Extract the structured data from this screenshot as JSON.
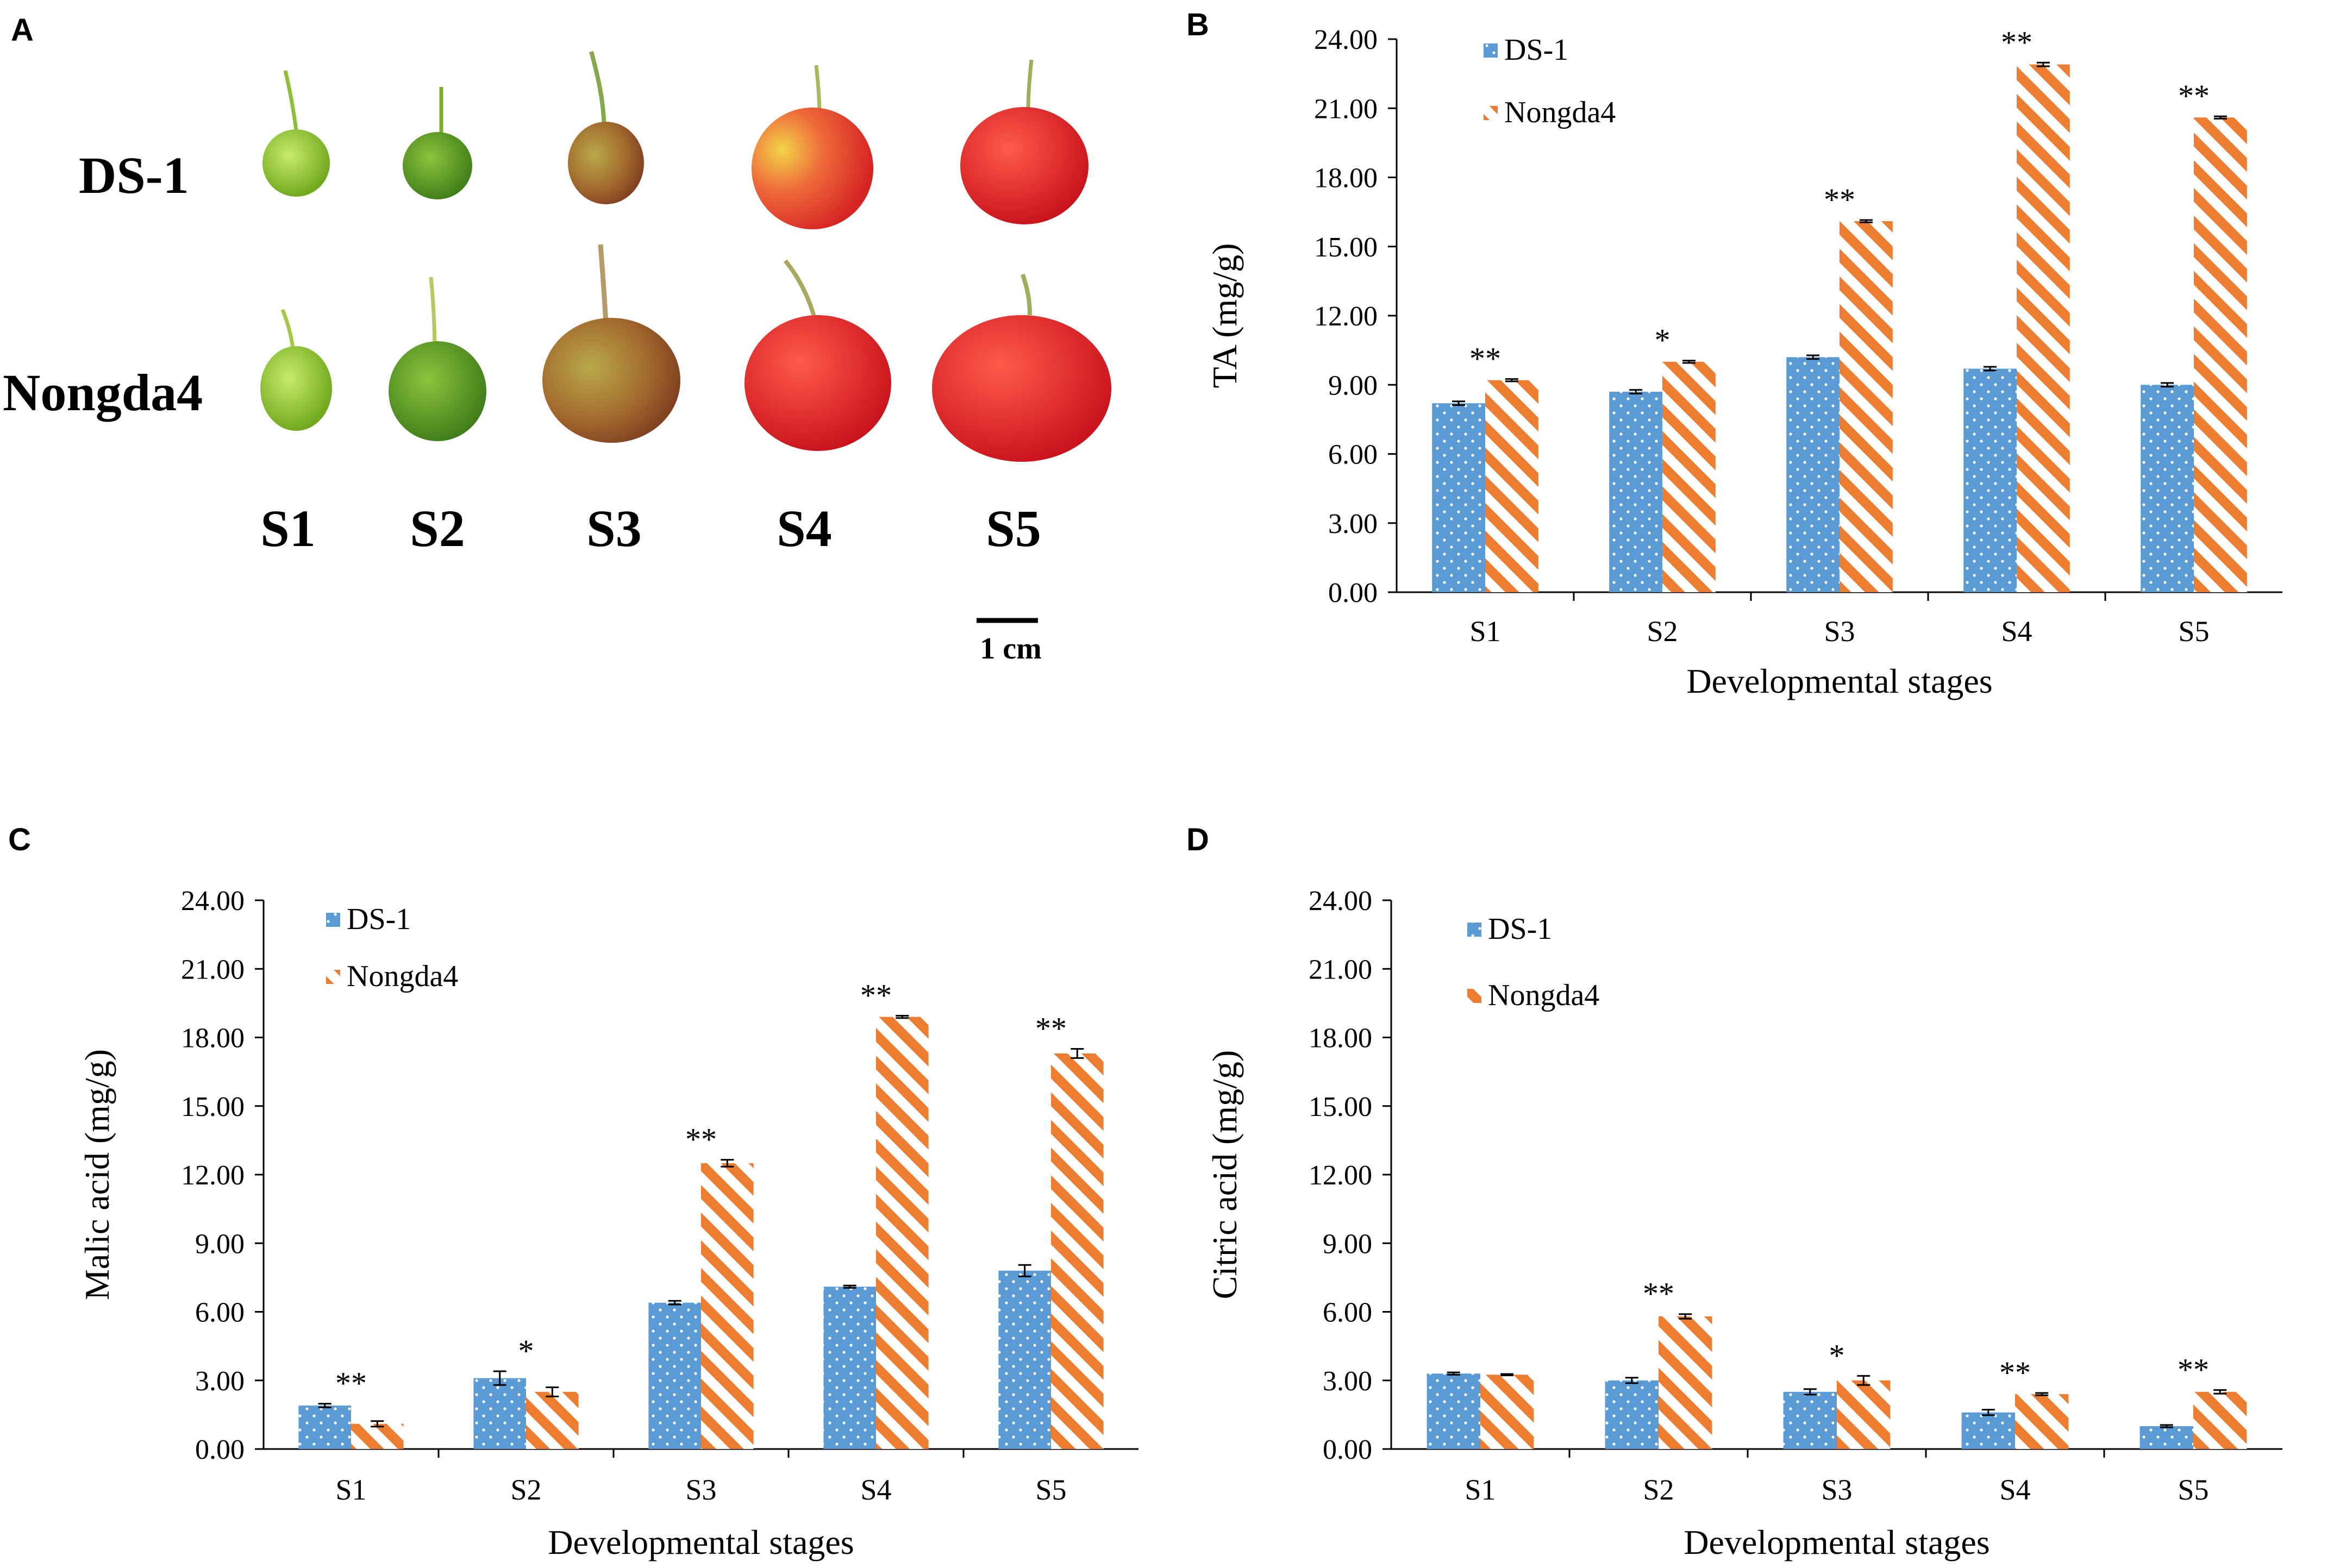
{
  "colors": {
    "ds1": "#5B9BD5",
    "nongda4": "#ED7D31",
    "axis": "#000000"
  },
  "panel_a": {
    "letter": "A",
    "row_labels": [
      "DS-1",
      "Nongda4"
    ],
    "stage_labels": [
      "S1",
      "S2",
      "S3",
      "S4",
      "S5"
    ],
    "scale_bar_label": "1 cm"
  },
  "chart_data": [
    {
      "panel": "B",
      "type": "bar",
      "title": "",
      "xlabel": "Developmental stages",
      "ylabel": "TA (mg/g)",
      "ylim": [
        0,
        24
      ],
      "yticks": [
        "0.00",
        "3.00",
        "6.00",
        "9.00",
        "12.00",
        "15.00",
        "18.00",
        "21.00",
        "24.00"
      ],
      "categories": [
        "S1",
        "S2",
        "S3",
        "S4",
        "S5"
      ],
      "legend_position": "top-left",
      "series": [
        {
          "name": "DS-1",
          "values": [
            8.2,
            8.7,
            10.2,
            9.7,
            9.0
          ],
          "errors": [
            0.08,
            0.08,
            0.08,
            0.08,
            0.08
          ]
        },
        {
          "name": "Nongda4",
          "values": [
            9.2,
            10.0,
            16.1,
            22.9,
            20.6
          ],
          "errors": [
            0.05,
            0.05,
            0.05,
            0.08,
            0.05
          ]
        }
      ],
      "significance": [
        "**",
        "*",
        "**",
        "**",
        "**"
      ]
    },
    {
      "panel": "C",
      "type": "bar",
      "title": "",
      "xlabel": "Developmental stages",
      "ylabel": "Malic acid (mg/g)",
      "ylim": [
        0,
        24
      ],
      "yticks": [
        "0.00",
        "3.00",
        "6.00",
        "9.00",
        "12.00",
        "15.00",
        "18.00",
        "21.00",
        "24.00"
      ],
      "categories": [
        "S1",
        "S2",
        "S3",
        "S4",
        "S5"
      ],
      "legend_position": "top-left",
      "series": [
        {
          "name": "DS-1",
          "values": [
            1.9,
            3.1,
            6.4,
            7.1,
            7.8
          ],
          "errors": [
            0.08,
            0.3,
            0.08,
            0.05,
            0.25
          ]
        },
        {
          "name": "Nongda4",
          "values": [
            1.1,
            2.5,
            12.5,
            18.9,
            17.3
          ],
          "errors": [
            0.12,
            0.2,
            0.15,
            0.05,
            0.2
          ]
        }
      ],
      "significance": [
        "**",
        "*",
        "**",
        "**",
        "**"
      ]
    },
    {
      "panel": "D",
      "type": "bar",
      "title": "",
      "xlabel": "Developmental stages",
      "ylabel": "Citric acid (mg/g)",
      "ylim": [
        0,
        24
      ],
      "yticks": [
        "0.00",
        "3.00",
        "6.00",
        "9.00",
        "12.00",
        "15.00",
        "18.00",
        "21.00",
        "24.00"
      ],
      "categories": [
        "S1",
        "S2",
        "S3",
        "S4",
        "S5"
      ],
      "legend_position": "top-left",
      "series": [
        {
          "name": "DS-1",
          "values": [
            3.3,
            3.0,
            2.5,
            1.6,
            1.0
          ],
          "errors": [
            0.05,
            0.12,
            0.12,
            0.12,
            0.05
          ]
        },
        {
          "name": "Nongda4",
          "values": [
            3.25,
            5.8,
            3.0,
            2.4,
            2.5
          ],
          "errors": [
            0.03,
            0.1,
            0.2,
            0.05,
            0.08
          ]
        }
      ],
      "significance": [
        "",
        "**",
        "*",
        "**",
        "**"
      ]
    }
  ]
}
